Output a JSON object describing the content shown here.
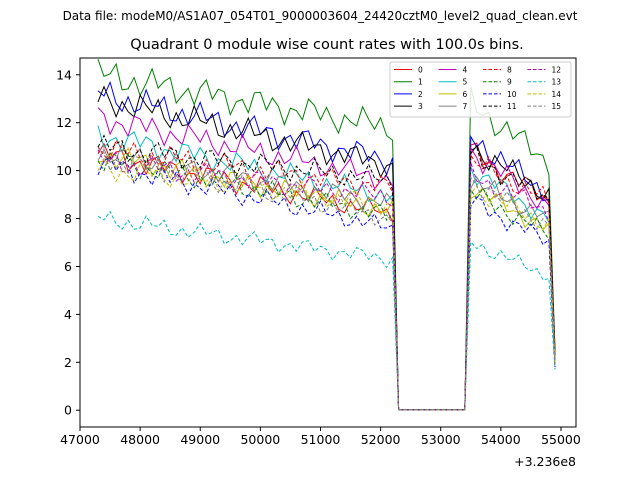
{
  "chart_data": {
    "type": "line",
    "suptitle": "Data file: modeM0/AS1A07_054T01_9000003604_24420cztM0_level2_quad_clean.evt",
    "title": "Quadrant 0 module wise count rates with 100.0s bins.",
    "xlabel": "",
    "ylabel": "",
    "x_offset_label": "+3.236e8",
    "xlim": [
      47000,
      55250
    ],
    "ylim": [
      -0.7,
      14.7
    ],
    "x_ticks": [
      47000,
      48000,
      49000,
      50000,
      51000,
      52000,
      53000,
      54000,
      55000
    ],
    "y_ticks": [
      0,
      2,
      4,
      6,
      8,
      10,
      12,
      14
    ],
    "legend_position": "top-right",
    "legend_columns": 4,
    "x_start": 47300,
    "x_step": 100,
    "segments": [
      {
        "from": 47300,
        "to": 52200
      },
      {
        "from": 53500,
        "to": 54900
      }
    ],
    "series": [
      {
        "name": "0",
        "color": "#ff0000",
        "dash": false,
        "start": 10.7,
        "end": 8.2,
        "resume": 10.8,
        "resume_end": 8.6,
        "final": 2.6
      },
      {
        "name": "1",
        "color": "#008000",
        "dash": false,
        "start": 14.0,
        "end": 11.8,
        "resume": 12.8,
        "resume_end": 10.2,
        "final": 2.5
      },
      {
        "name": "2",
        "color": "#0000ff",
        "dash": false,
        "start": 13.2,
        "end": 10.4,
        "resume": 11.4,
        "resume_end": 8.8,
        "final": 2.2
      },
      {
        "name": "3",
        "color": "#000000",
        "dash": false,
        "start": 13.0,
        "end": 10.2,
        "resume": 11.0,
        "resume_end": 8.8,
        "final": 2.3
      },
      {
        "name": "4",
        "color": "#bf00bf",
        "dash": false,
        "start": 12.2,
        "end": 9.6,
        "resume": 10.8,
        "resume_end": 8.3,
        "final": 2.1
      },
      {
        "name": "5",
        "color": "#00bfbf",
        "dash": false,
        "start": 11.5,
        "end": 8.9,
        "resume": 10.1,
        "resume_end": 7.8,
        "final": 2.0
      },
      {
        "name": "6",
        "color": "#bfbf00",
        "dash": false,
        "start": 10.7,
        "end": 8.3,
        "resume": 9.3,
        "resume_end": 7.4,
        "final": 1.9
      },
      {
        "name": "7",
        "color": "#808080",
        "dash": false,
        "start": 10.8,
        "end": 8.6,
        "resume": 9.6,
        "resume_end": 7.8,
        "final": 2.0
      },
      {
        "name": "8",
        "color": "#ff0000",
        "dash": true,
        "start": 10.9,
        "end": 9.3,
        "resume": 10.4,
        "resume_end": 8.6,
        "final": 2.3
      },
      {
        "name": "9",
        "color": "#008000",
        "dash": true,
        "start": 10.5,
        "end": 8.1,
        "resume": 9.1,
        "resume_end": 7.2,
        "final": 1.9
      },
      {
        "name": "10",
        "color": "#0000ff",
        "dash": true,
        "start": 10.3,
        "end": 7.6,
        "resume": 8.7,
        "resume_end": 6.9,
        "final": 1.8
      },
      {
        "name": "11",
        "color": "#000000",
        "dash": true,
        "start": 11.0,
        "end": 9.6,
        "resume": 10.6,
        "resume_end": 8.7,
        "final": 2.2
      },
      {
        "name": "12",
        "color": "#bf00bf",
        "dash": true,
        "start": 10.4,
        "end": 8.9,
        "resume": 9.8,
        "resume_end": 8.2,
        "final": 2.1
      },
      {
        "name": "13",
        "color": "#00bfbf",
        "dash": true,
        "start": 8.0,
        "end": 6.3,
        "resume": 7.0,
        "resume_end": 5.5,
        "final": 1.7
      },
      {
        "name": "14",
        "color": "#bfbf00",
        "dash": true,
        "start": 10.1,
        "end": 8.6,
        "resume": 9.3,
        "resume_end": 7.6,
        "final": 2.0
      },
      {
        "name": "15",
        "color": "#808080",
        "dash": true,
        "start": 10.6,
        "end": 8.0,
        "resume": 9.6,
        "resume_end": 7.5,
        "final": 1.9
      }
    ]
  }
}
